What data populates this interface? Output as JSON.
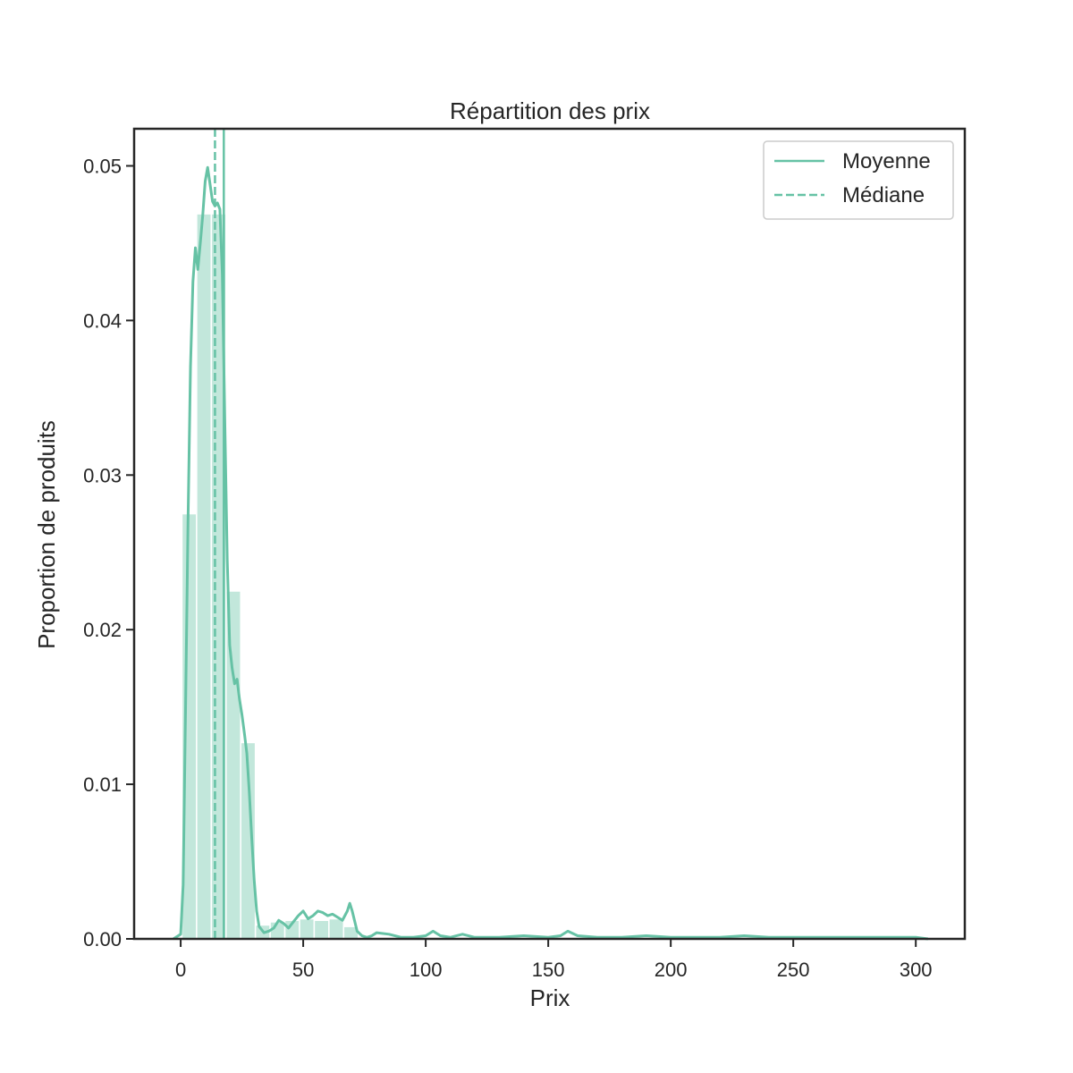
{
  "chart_data": {
    "type": "histogram",
    "title": "Répartition des prix",
    "xlabel": "Prix",
    "ylabel": "Proportion de produits",
    "xlim": [
      -19,
      320
    ],
    "ylim": [
      0,
      0.0524
    ],
    "xticks": [
      0,
      50,
      100,
      150,
      200,
      250,
      300
    ],
    "yticks": [
      0.0,
      0.01,
      0.02,
      0.03,
      0.04,
      0.05
    ],
    "ytick_labels": [
      "0.00",
      "0.01",
      "0.02",
      "0.03",
      "0.04",
      "0.05"
    ],
    "color": "#66c2a5",
    "bars": {
      "bin_edges": [
        0.5,
        6.5,
        12.5,
        18.5,
        24.5,
        30.5,
        36.5,
        42.5,
        48.5,
        54.5,
        60.5,
        66.5,
        72.5
      ],
      "values": [
        0.0275,
        0.0469,
        0.0469,
        0.0225,
        0.0127,
        0.0009,
        0.0011,
        0.0012,
        0.0013,
        0.0012,
        0.0013,
        0.0008
      ]
    },
    "kde": {
      "x": [
        -3,
        0,
        1,
        2,
        3,
        4,
        5,
        6,
        7,
        8,
        9,
        10,
        11,
        12,
        13,
        14,
        15,
        16,
        17,
        18,
        19,
        20,
        21,
        22,
        23,
        24,
        25,
        26,
        27,
        28,
        29,
        30,
        31,
        32,
        34,
        36,
        38,
        40,
        42,
        44,
        46,
        48,
        50,
        52,
        54,
        56,
        58,
        60,
        62,
        64,
        66,
        68,
        69,
        70,
        72,
        74,
        76,
        78,
        80,
        85,
        90,
        95,
        100,
        103,
        106,
        110,
        115,
        120,
        130,
        140,
        150,
        155,
        158,
        162,
        170,
        180,
        190,
        200,
        210,
        220,
        230,
        240,
        250,
        260,
        280,
        300,
        305
      ],
      "y": [
        0.0,
        0.0003,
        0.0035,
        0.015,
        0.027,
        0.037,
        0.0425,
        0.0447,
        0.0433,
        0.045,
        0.0468,
        0.049,
        0.0499,
        0.0488,
        0.0477,
        0.0474,
        0.0476,
        0.0472,
        0.043,
        0.0335,
        0.0245,
        0.019,
        0.0175,
        0.0165,
        0.0168,
        0.0155,
        0.0145,
        0.0133,
        0.012,
        0.0095,
        0.0065,
        0.0038,
        0.0018,
        0.0008,
        0.0004,
        0.0005,
        0.0007,
        0.0012,
        0.001,
        0.0007,
        0.0011,
        0.0015,
        0.0018,
        0.0013,
        0.0015,
        0.0018,
        0.0017,
        0.0015,
        0.0016,
        0.0014,
        0.0012,
        0.0018,
        0.0023,
        0.0018,
        0.0005,
        0.0002,
        0.0001,
        0.0002,
        0.0004,
        0.0003,
        0.0001,
        0.0001,
        0.0002,
        0.0005,
        0.0002,
        0.0001,
        0.0003,
        0.0001,
        0.0001,
        0.0002,
        0.0001,
        0.0002,
        0.0005,
        0.0002,
        0.0001,
        0.0001,
        0.0002,
        0.0001,
        0.0001,
        0.0001,
        0.0002,
        0.0001,
        0.0001,
        0.0001,
        0.0001,
        0.0001,
        0.0
      ]
    },
    "lines": [
      {
        "name": "Moyenne",
        "x": 17.6,
        "style": "solid"
      },
      {
        "name": "Médiane",
        "x": 14.0,
        "style": "dashed"
      }
    ],
    "legend": {
      "position": "top-right",
      "entries": [
        "Moyenne",
        "Médiane"
      ]
    }
  }
}
